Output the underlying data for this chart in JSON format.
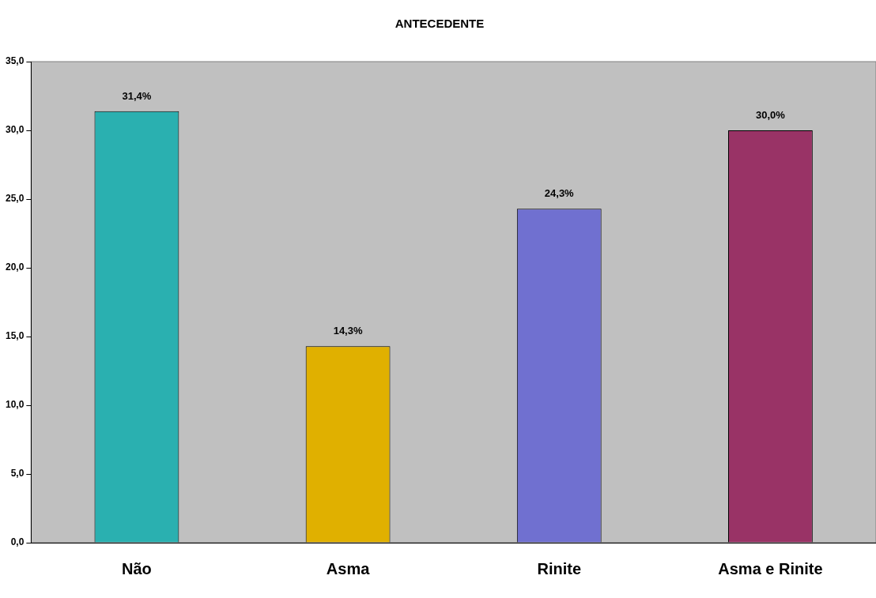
{
  "chart_data": {
    "type": "bar",
    "title": "ANTECEDENTE",
    "categories": [
      "Não",
      "Asma",
      "Rinite",
      "Asma e Rinite"
    ],
    "values": [
      31.4,
      14.3,
      24.3,
      30.0
    ],
    "colors": [
      "#2ab0b0",
      "#e0b000",
      "#7070d0",
      "#993366"
    ],
    "value_labels": [
      "31,4%",
      "14,3%",
      "24,3%",
      "30,0%"
    ],
    "ylim": [
      0,
      35
    ],
    "yticks": [
      {
        "value": 0,
        "label": "0,0"
      },
      {
        "value": 5,
        "label": "5,0"
      },
      {
        "value": 10,
        "label": "10,0"
      },
      {
        "value": 15,
        "label": "15,0"
      },
      {
        "value": 20,
        "label": "20,0"
      },
      {
        "value": 25,
        "label": "25,0"
      },
      {
        "value": 30,
        "label": "30,0"
      },
      {
        "value": 35,
        "label": "35,0"
      }
    ],
    "grid": false,
    "legend": false
  }
}
